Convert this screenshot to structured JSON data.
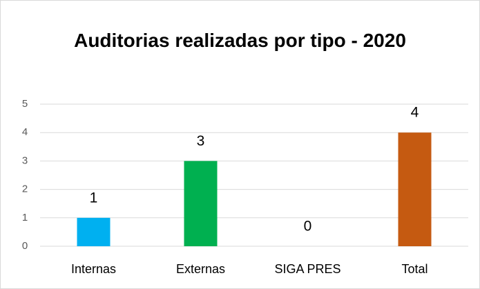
{
  "chart_data": {
    "type": "bar",
    "title": "Auditorias realizadas por tipo - 2020",
    "categories": [
      "Internas",
      "Externas",
      "SIGA PRES",
      "Total"
    ],
    "values": [
      1,
      3,
      0,
      4
    ],
    "colors": [
      "#00b0f0",
      "#00b050",
      "#7f7f7f",
      "#c55a11"
    ],
    "ylim": [
      0,
      5
    ],
    "yticks": [
      0,
      1,
      2,
      3,
      4,
      5
    ],
    "grid": true
  }
}
